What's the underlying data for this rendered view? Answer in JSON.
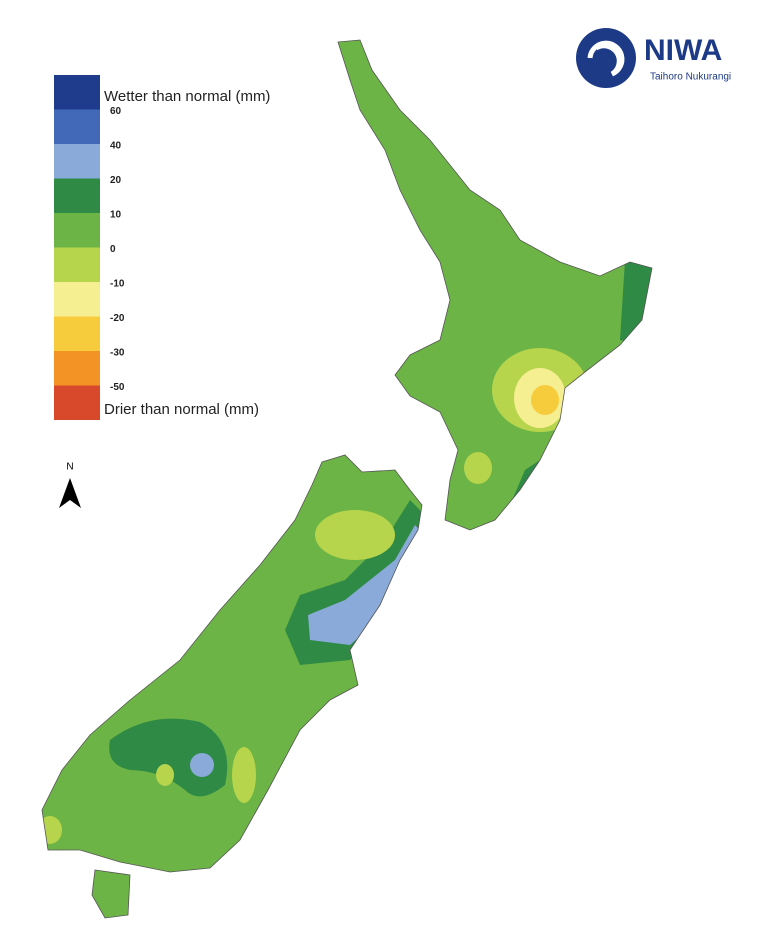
{
  "logo": {
    "name": "NIWA",
    "subtitle": "Taihoro Nukurangi"
  },
  "legend": {
    "wetter_label": "Wetter than normal (mm)",
    "drier_label": "Drier than normal (mm)",
    "colors": [
      "#1f3c8c",
      "#4169b8",
      "#8aaad9",
      "#2f8a45",
      "#6cb445",
      "#b6d54c",
      "#f5ef92",
      "#f6cc3c",
      "#f39325",
      "#d8482b"
    ],
    "ticks": [
      60,
      40,
      20,
      10,
      0,
      -10,
      -20,
      -30,
      -50
    ]
  },
  "north_arrow": {
    "label": "N"
  }
}
